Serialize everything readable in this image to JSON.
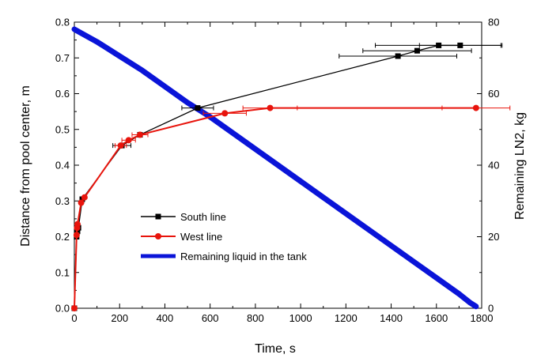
{
  "chart_data": {
    "type": "line",
    "xlabel": "Time, s",
    "ylabel": "Distance from pool center, m",
    "y2label": "Remaining LN2, kg",
    "xlim": [
      0,
      1800
    ],
    "ylim": [
      0,
      0.8
    ],
    "y2lim": [
      0,
      80
    ],
    "x_ticks": [
      "0",
      "200",
      "400",
      "600",
      "800",
      "1000",
      "1200",
      "1400",
      "1600",
      "1800"
    ],
    "y_ticks": [
      "0.0",
      "0.1",
      "0.2",
      "0.3",
      "0.4",
      "0.5",
      "0.6",
      "0.7",
      "0.8"
    ],
    "y2_ticks": [
      "0",
      "20",
      "40",
      "60",
      "80"
    ],
    "grid": false,
    "legend_position": "bottom-left",
    "colors": {
      "south": "#000000",
      "west": "#e8140c",
      "liquid": "#0a14d8"
    },
    "series": [
      {
        "name": "South line",
        "axis": "left",
        "marker": "square",
        "points": [
          {
            "x": 0,
            "y": 0.0,
            "xerr": 0
          },
          {
            "x": 10,
            "y": 0.2,
            "xerr": 0
          },
          {
            "x": 14,
            "y": 0.215,
            "xerr": 0
          },
          {
            "x": 18,
            "y": 0.225,
            "xerr": 0
          },
          {
            "x": 35,
            "y": 0.305,
            "xerr": 0
          },
          {
            "x": 210,
            "y": 0.455,
            "xerr": 40
          },
          {
            "x": 290,
            "y": 0.485,
            "xerr": 0
          },
          {
            "x": 545,
            "y": 0.56,
            "xerr": 70
          },
          {
            "x": 1430,
            "y": 0.705,
            "xerr": 260
          },
          {
            "x": 1515,
            "y": 0.72,
            "xerr": 240
          },
          {
            "x": 1610,
            "y": 0.735,
            "xerr": 280
          },
          {
            "x": 1705,
            "y": 0.735,
            "xerr": 180
          }
        ]
      },
      {
        "name": "West line",
        "axis": "left",
        "marker": "circle",
        "points": [
          {
            "x": 0,
            "y": 0.0,
            "xerr": 0
          },
          {
            "x": 10,
            "y": 0.205,
            "xerr": 0
          },
          {
            "x": 12,
            "y": 0.225,
            "xerr": 0
          },
          {
            "x": 14,
            "y": 0.235,
            "xerr": 0
          },
          {
            "x": 30,
            "y": 0.295,
            "xerr": 0
          },
          {
            "x": 45,
            "y": 0.31,
            "xerr": 0
          },
          {
            "x": 205,
            "y": 0.455,
            "xerr": 25
          },
          {
            "x": 240,
            "y": 0.47,
            "xerr": 30
          },
          {
            "x": 290,
            "y": 0.485,
            "xerr": 35
          },
          {
            "x": 665,
            "y": 0.545,
            "xerr": 95
          },
          {
            "x": 865,
            "y": 0.56,
            "xerr": 120
          },
          {
            "x": 1775,
            "y": 0.56,
            "xerr": 150
          }
        ]
      },
      {
        "name": "Remaining liquid in the tank",
        "axis": "right",
        "x": [
          0,
          100,
          200,
          300,
          400,
          500,
          600,
          700,
          800,
          900,
          1000,
          1100,
          1200,
          1300,
          1400,
          1500,
          1600,
          1700,
          1750,
          1775
        ],
        "y": [
          78,
          74.5,
          70.5,
          66.5,
          62,
          57.5,
          53.5,
          49,
          44.5,
          40,
          35.5,
          31,
          26.5,
          22,
          17.5,
          13,
          8.5,
          4,
          1.5,
          0.5
        ]
      }
    ]
  }
}
